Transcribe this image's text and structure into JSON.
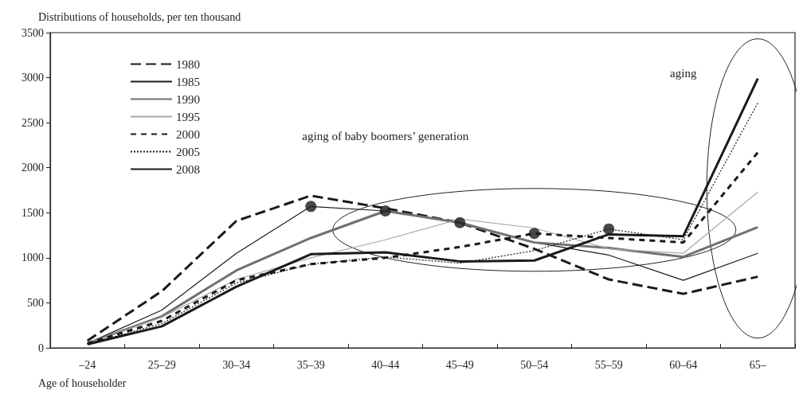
{
  "chart_data": {
    "type": "line",
    "xlabel": "Age of householder",
    "ylabel": "Distributions of households, per ten thousand",
    "categories": [
      "–24",
      "25–29",
      "30–34",
      "35–39",
      "40–44",
      "45–49",
      "50–54",
      "55–59",
      "60–64",
      "65–"
    ],
    "ylim": [
      0,
      3500
    ],
    "yticks": [
      0,
      500,
      1000,
      1500,
      2000,
      2500,
      3000,
      3500
    ],
    "grid": false,
    "legend": "top left",
    "marker": "none",
    "annotations": [
      "aging of baby boomers’ generation",
      "aging"
    ],
    "series": [
      {
        "name": "1980",
        "color": "#1a1a1a",
        "line_style": "dashed",
        "values": [
          80,
          630,
          1410,
          1690,
          1550,
          1390,
          1100,
          760,
          600,
          790
        ]
      },
      {
        "name": "1985",
        "color": "#1a1a1a",
        "line_style": "solid",
        "values": [
          50,
          420,
          1050,
          1570,
          1520,
          1390,
          1170,
          1030,
          750,
          1050
        ]
      },
      {
        "name": "1990",
        "color": "#707070",
        "line_style": "solid",
        "values": [
          50,
          350,
          860,
          1220,
          1520,
          1390,
          1170,
          1110,
          1010,
          1340
        ]
      },
      {
        "name": "1995",
        "color": "#a8a8a8",
        "line_style": "solid",
        "values": [
          50,
          340,
          760,
          1000,
          1200,
          1430,
          1330,
          1100,
          1050,
          1730
        ]
      },
      {
        "name": "2000",
        "color": "#1a1a1a",
        "line_style": "dashed",
        "values": [
          50,
          300,
          750,
          930,
          1000,
          1120,
          1270,
          1220,
          1170,
          2170
        ]
      },
      {
        "name": "2005",
        "color": "#1a1a1a",
        "line_style": "dotted",
        "values": [
          40,
          270,
          720,
          930,
          1010,
          940,
          1080,
          1320,
          1200,
          2720
        ]
      },
      {
        "name": "2008",
        "color": "#1a1a1a",
        "line_style": "solid",
        "values": [
          40,
          240,
          680,
          1040,
          1060,
          960,
          970,
          1260,
          1240,
          2990
        ]
      },
      {
        "type": "scatter",
        "marker": "circle",
        "color": "#1a1a1a",
        "values": [
          null,
          null,
          null,
          1570,
          1520,
          1390,
          1270,
          1320,
          null,
          null
        ]
      }
    ]
  }
}
